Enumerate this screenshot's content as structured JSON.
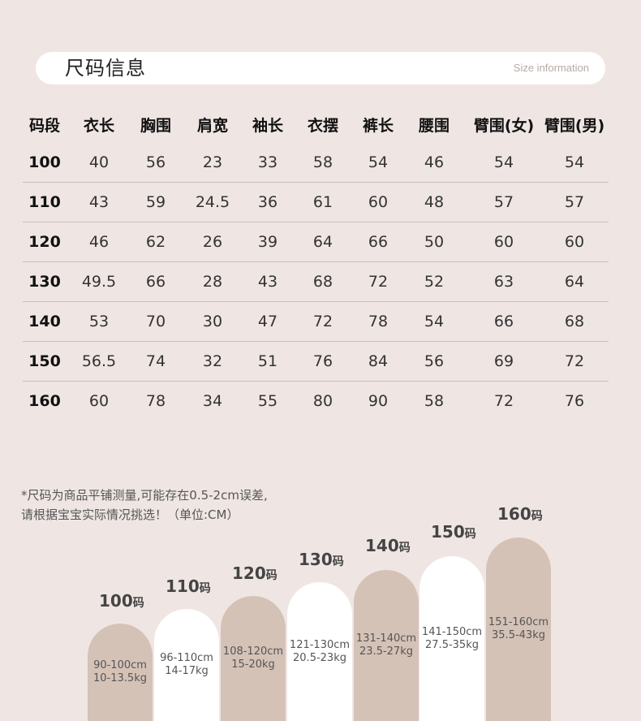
{
  "header": {
    "title": "尺码信息",
    "subtitle": "Size information"
  },
  "table": {
    "headers": [
      "码段",
      "衣长",
      "胸围",
      "肩宽",
      "袖长",
      "衣摆",
      "裤长",
      "腰围",
      "臂围(女)",
      "臂围(男)"
    ],
    "rows": [
      [
        "100",
        "40",
        "56",
        "23",
        "33",
        "58",
        "54",
        "46",
        "54",
        "54"
      ],
      [
        "110",
        "43",
        "59",
        "24.5",
        "36",
        "61",
        "60",
        "48",
        "57",
        "57"
      ],
      [
        "120",
        "46",
        "62",
        "26",
        "39",
        "64",
        "66",
        "50",
        "60",
        "60"
      ],
      [
        "130",
        "49.5",
        "66",
        "28",
        "43",
        "68",
        "72",
        "52",
        "63",
        "64"
      ],
      [
        "140",
        "53",
        "70",
        "30",
        "47",
        "72",
        "78",
        "54",
        "66",
        "68"
      ],
      [
        "150",
        "56.5",
        "74",
        "32",
        "51",
        "76",
        "84",
        "56",
        "69",
        "72"
      ],
      [
        "160",
        "60",
        "78",
        "34",
        "55",
        "80",
        "90",
        "58",
        "72",
        "76"
      ]
    ]
  },
  "note": {
    "line1": "*尺码为商品平铺测量,可能存在0.5-2cm误差,",
    "line2": "请根据宝宝实际情况挑选！（单位:CM）"
  },
  "sizes": [
    {
      "size": "100",
      "unit": "码",
      "height_range": "90-100cm",
      "weight_range": "10-13.5kg",
      "color": "#d5c2b7"
    },
    {
      "size": "110",
      "unit": "码",
      "height_range": "96-110cm",
      "weight_range": "14-17kg",
      "color": "#ffffff"
    },
    {
      "size": "120",
      "unit": "码",
      "height_range": "108-120cm",
      "weight_range": "15-20kg",
      "color": "#d5c2b7"
    },
    {
      "size": "130",
      "unit": "码",
      "height_range": "121-130cm",
      "weight_range": "20.5-23kg",
      "color": "#ffffff"
    },
    {
      "size": "140",
      "unit": "码",
      "height_range": "131-140cm",
      "weight_range": "23.5-27kg",
      "color": "#d5c2b7"
    },
    {
      "size": "150",
      "unit": "码",
      "height_range": "141-150cm",
      "weight_range": "27.5-35kg",
      "color": "#ffffff"
    },
    {
      "size": "160",
      "unit": "码",
      "height_range": "151-160cm",
      "weight_range": "35.5-43kg",
      "color": "#d5c2b7"
    }
  ]
}
